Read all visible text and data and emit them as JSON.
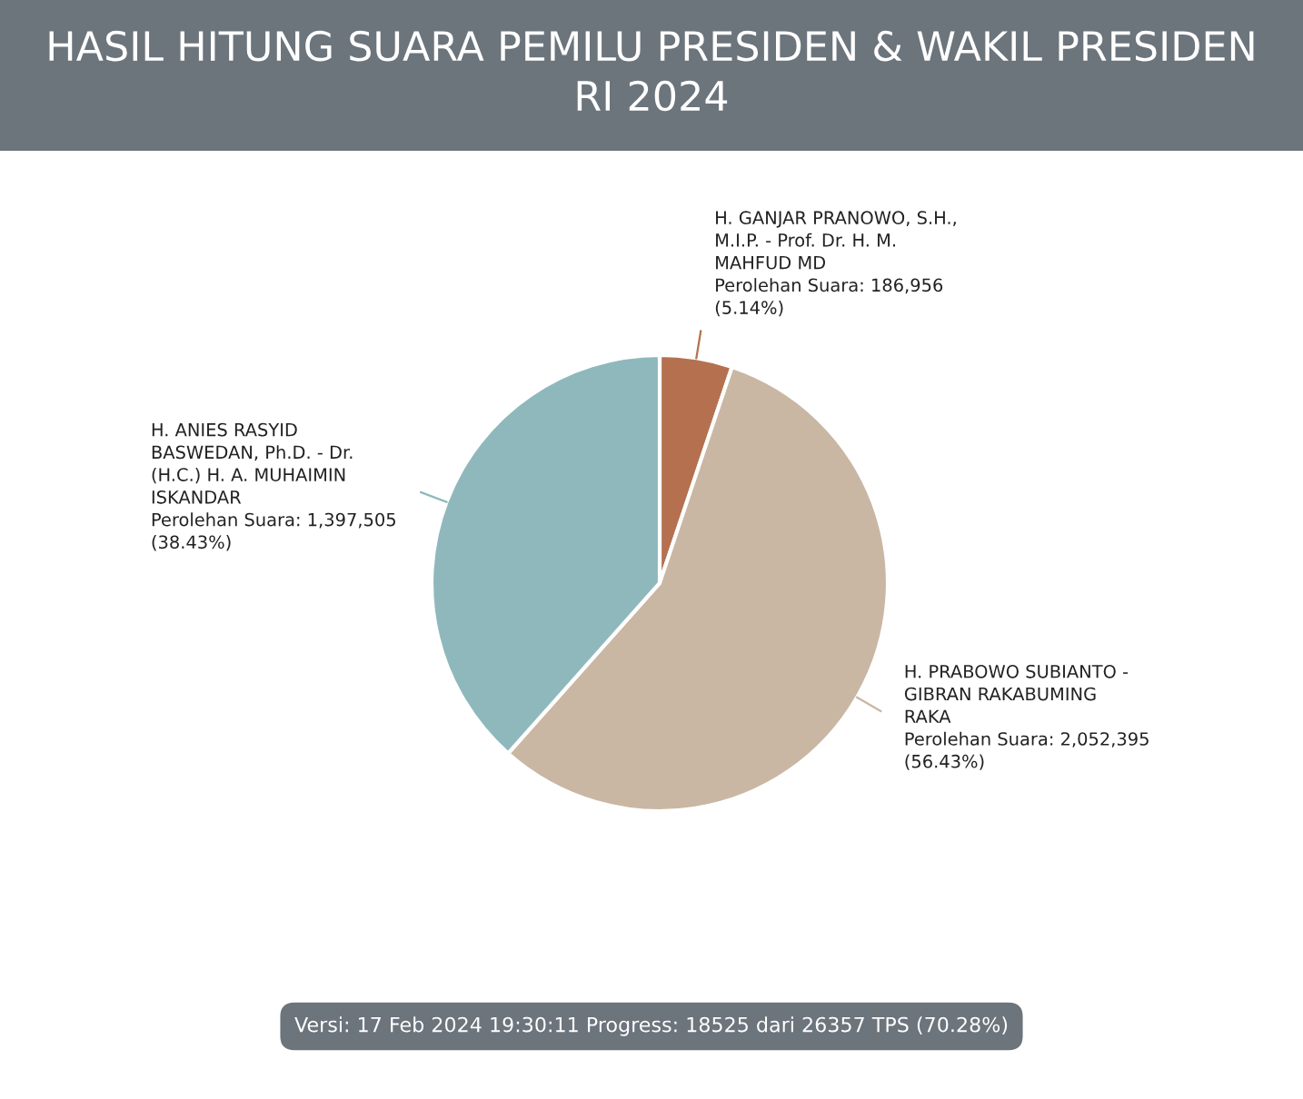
{
  "chart_data": {
    "type": "pie",
    "title": "HASIL HITUNG SUARA PEMILU PRESIDEN & WAKIL PRESIDEN\nRI 2024",
    "categories": [
      "H. GANJAR PRANOWO, S.H.,\nM.I.P. - Prof. Dr. H. M.\nMAHFUD MD",
      "H. PRABOWO SUBIANTO -\nGIBRAN RAKABUMING\nRAKA",
      "H. ANIES RASYID\nBASWEDAN, Ph.D. - Dr.\n(H.C.) H. A. MUHAIMIN\nISKANDAR"
    ],
    "values": [
      186956,
      2052395,
      1397505
    ],
    "value_labels": [
      "Perolehan Suara: 186,956\n(5.14%)",
      "Perolehan Suara: 2,052,395\n(56.43%)",
      "Perolehan Suara: 1,397,505\n(38.43%)"
    ],
    "colors": [
      "#b5714f",
      "#c9b7a4",
      "#8fb8bd"
    ],
    "annotations": [
      "Versi: 17 Feb 2024 19:30:11 Progress: 18525 dari 26357 TPS (70.28%)"
    ]
  }
}
